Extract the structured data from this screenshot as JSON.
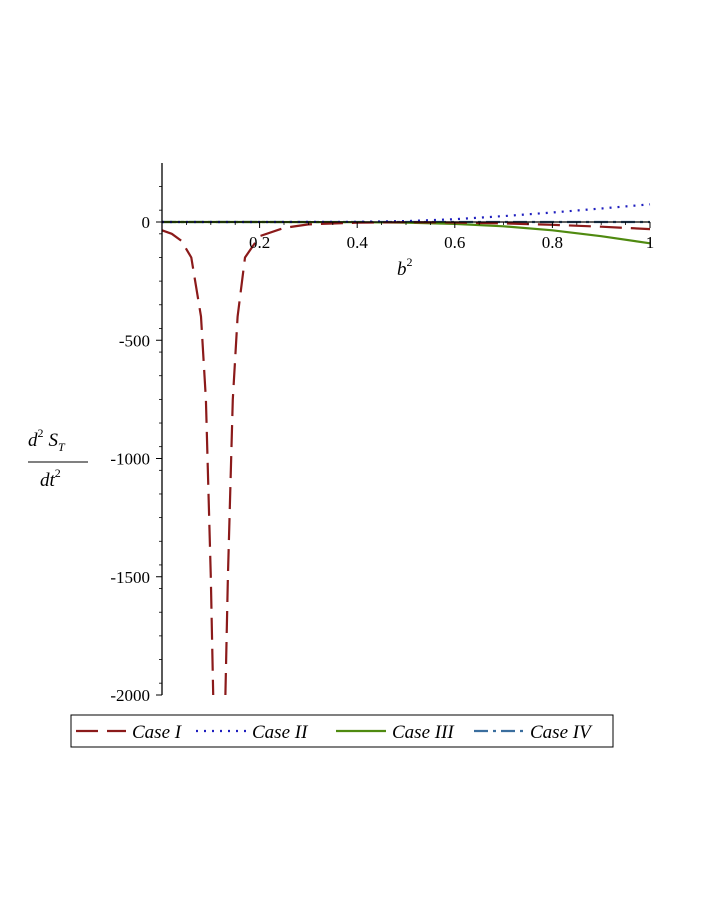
{
  "chart_data": {
    "type": "line",
    "xlabel": {
      "base": "b",
      "sup": "2"
    },
    "ylabel": {
      "num_base": "d",
      "num_sup": "2",
      "num_sym": "S",
      "num_sub": "T",
      "den_base": "dt",
      "den_sup": "2"
    },
    "xlim": [
      0,
      1
    ],
    "ylim": [
      -2000,
      250
    ],
    "x_ticks": [
      0.2,
      0.4,
      0.6,
      0.8,
      1
    ],
    "x_tick_labels": [
      "0.2",
      "0.4",
      "0.6",
      "0.8",
      "1"
    ],
    "y_ticks": [
      0,
      -500,
      -1000,
      -1500,
      -2000
    ],
    "y_tick_labels": [
      "0",
      "-500",
      "-1000",
      "-1500",
      "-2000"
    ],
    "grid": false,
    "legend_position": "bottom",
    "series": [
      {
        "name": "Case I",
        "color": "#8b1a1a",
        "dash": "long-dash",
        "branches": [
          {
            "x": [
              0.0,
              0.02,
              0.04,
              0.06,
              0.08,
              0.09,
              0.1,
              0.105
            ],
            "y": [
              -35,
              -50,
              -80,
              -150,
              -400,
              -750,
              -1500,
              -2000
            ]
          },
          {
            "x": [
              0.13,
              0.135,
              0.145,
              0.155,
              0.17,
              0.2,
              0.25,
              0.3,
              0.4,
              0.5,
              0.6,
              0.7,
              0.8,
              0.9,
              1.0
            ],
            "y": [
              -2000,
              -1500,
              -750,
              -400,
              -150,
              -60,
              -25,
              -10,
              -3,
              -1,
              -2,
              -6,
              -12,
              -20,
              -30
            ]
          }
        ]
      },
      {
        "name": "Case II",
        "color": "#1f1fbf",
        "dash": "dotted",
        "branches": [
          {
            "x": [
              0.0,
              0.2,
              0.4,
              0.5,
              0.6,
              0.7,
              0.8,
              0.9,
              1.0
            ],
            "y": [
              0,
              0,
              1,
              4,
              12,
              25,
              40,
              57,
              75
            ]
          }
        ]
      },
      {
        "name": "Case III",
        "color": "#4f8a10",
        "dash": "solid",
        "branches": [
          {
            "x": [
              0.0,
              0.2,
              0.4,
              0.5,
              0.6,
              0.7,
              0.8,
              0.9,
              1.0
            ],
            "y": [
              0,
              0,
              -1,
              -3,
              -8,
              -18,
              -35,
              -60,
              -90
            ]
          }
        ]
      },
      {
        "name": "Case IV",
        "color": "#3a6e9e",
        "dash": "dash-dot",
        "branches": [
          {
            "x": [
              0.0,
              0.5,
              1.0
            ],
            "y": [
              0,
              0,
              0
            ]
          }
        ]
      }
    ]
  }
}
